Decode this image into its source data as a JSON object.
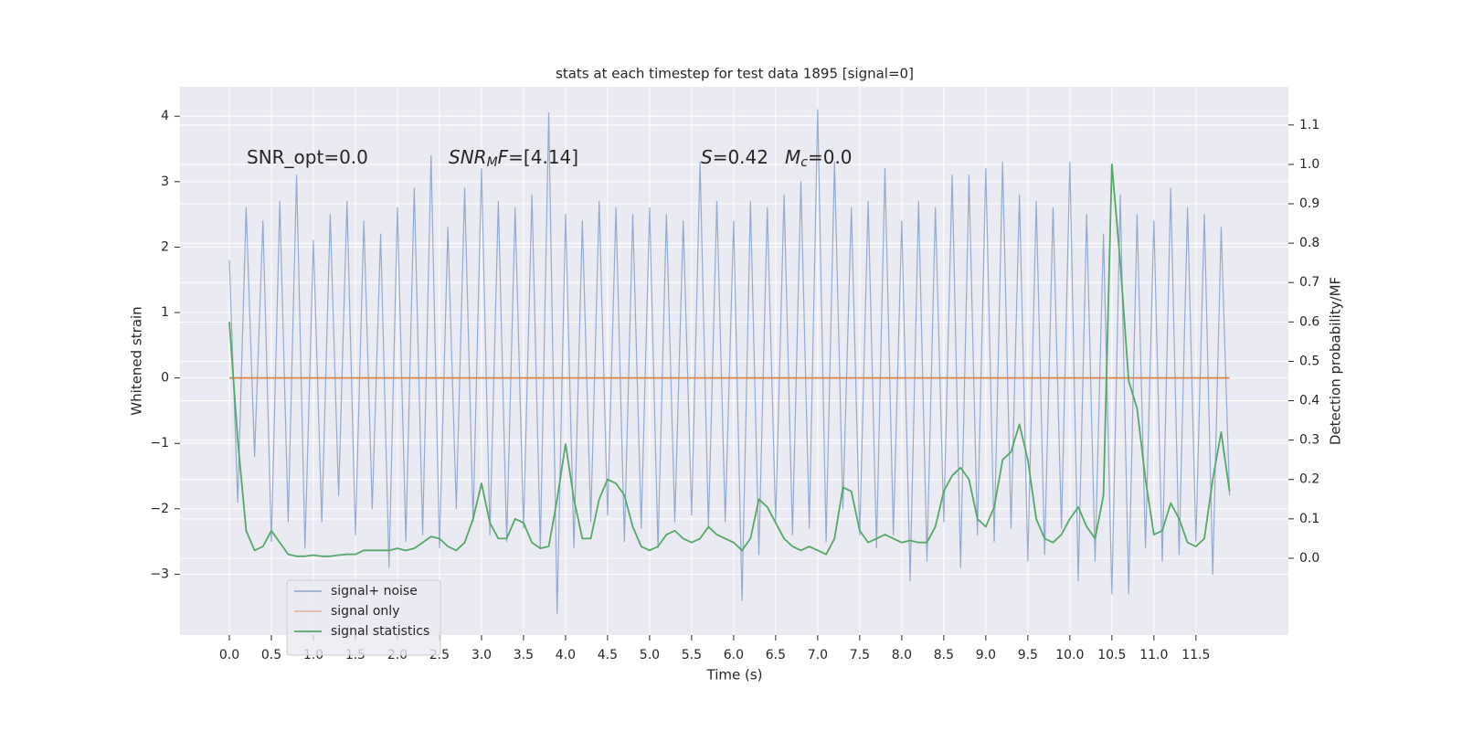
{
  "chart_data": {
    "type": "line",
    "title": "stats at each timestep for test data 1895 [signal=0]",
    "xlabel": "Time (s)",
    "ylabel": "Whitened strain",
    "y2label": "Detection probability/MF",
    "annotations": [
      {
        "parts": [
          {
            "text": "SNR_opt=0.0"
          }
        ]
      },
      {
        "parts": [
          {
            "text": "SNR",
            "italic": true
          },
          {
            "text": "M",
            "italic": true,
            "sub": true
          },
          {
            "text": "F",
            "italic": true
          },
          {
            "text": "=[4.14]"
          }
        ]
      },
      {
        "parts": [
          {
            "text": "S",
            "italic": true
          },
          {
            "text": "=0.42"
          }
        ]
      },
      {
        "parts": [
          {
            "text": "M",
            "italic": true
          },
          {
            "text": "c",
            "italic": true,
            "sub": true
          },
          {
            "text": "=0.0"
          }
        ]
      }
    ],
    "legend": "lower left",
    "grid": true,
    "xlim": [
      -0.587,
      12.6
    ],
    "ylim": [
      -3.93,
      4.45
    ],
    "y2lim": [
      -0.195,
      1.197
    ],
    "xticks": [
      {
        "value": 0,
        "label": "0.0"
      },
      0.5,
      {
        "value": 1,
        "label": "1.0"
      },
      1.5,
      {
        "value": 2,
        "label": "2.0"
      },
      2.5,
      {
        "value": 3,
        "label": "3.0"
      },
      3.5,
      {
        "value": 4,
        "label": "4.0"
      },
      4.5,
      {
        "value": 5,
        "label": "5.0"
      },
      5.5,
      {
        "value": 6,
        "label": "6.0"
      },
      6.5,
      {
        "value": 7,
        "label": "7.0"
      },
      7.5,
      {
        "value": 8,
        "label": "8.0"
      },
      8.5,
      {
        "value": 9,
        "label": "9.0"
      },
      9.5,
      {
        "value": 10,
        "label": "10.0"
      },
      10.5,
      {
        "value": 11,
        "label": "11.0"
      },
      11.5
    ],
    "yticks": [
      {
        "value": -3,
        "label": "−3"
      },
      {
        "value": -2,
        "label": "−2"
      },
      {
        "value": -1,
        "label": "−1"
      },
      0,
      1,
      2,
      3,
      4
    ],
    "y2ticks": [
      {
        "value": 0,
        "label": "0.0"
      },
      0.1,
      0.2,
      0.3,
      0.4,
      0.5,
      0.6,
      0.7,
      0.8,
      0.9,
      {
        "value": 1,
        "label": "1.0"
      },
      1.1
    ],
    "x": [
      0,
      0.1,
      0.2,
      0.3,
      0.4,
      0.5,
      0.6,
      0.7,
      0.8,
      0.9,
      1,
      1.1,
      1.2,
      1.3,
      1.4,
      1.5,
      1.6,
      1.7,
      1.8,
      1.9,
      2,
      2.1,
      2.2,
      2.3,
      2.4,
      2.5,
      2.6,
      2.7,
      2.8,
      2.9,
      3,
      3.1,
      3.2,
      3.3,
      3.4,
      3.5,
      3.6,
      3.7,
      3.8,
      3.9,
      4,
      4.1,
      4.2,
      4.3,
      4.4,
      4.5,
      4.6,
      4.7,
      4.8,
      4.9,
      5,
      5.1,
      5.2,
      5.3,
      5.4,
      5.5,
      5.6,
      5.7,
      5.8,
      5.9,
      6,
      6.1,
      6.2,
      6.3,
      6.4,
      6.5,
      6.6,
      6.7,
      6.8,
      6.9,
      7,
      7.1,
      7.2,
      7.3,
      7.4,
      7.5,
      7.6,
      7.7,
      7.8,
      7.9,
      8,
      8.1,
      8.2,
      8.3,
      8.4,
      8.5,
      8.6,
      8.7,
      8.8,
      8.9,
      9,
      9.1,
      9.2,
      9.3,
      9.4,
      9.5,
      9.6,
      9.7,
      9.8,
      9.9,
      10,
      10.1,
      10.2,
      10.3,
      10.4,
      10.5,
      10.6,
      10.7,
      10.8,
      10.9,
      11,
      11.1,
      11.2,
      11.3,
      11.4,
      11.5,
      11.6,
      11.7,
      11.8,
      11.9
    ],
    "series": [
      {
        "name": "signal+ noise",
        "color": "#4c72b0",
        "axis": "y",
        "values": [
          1.8,
          -1.9,
          2.6,
          -1.2,
          2.4,
          -2.5,
          2.7,
          -2.2,
          3.1,
          -2.6,
          2.1,
          -2.2,
          2.5,
          -1.8,
          2.7,
          -2.4,
          2.4,
          -2.0,
          2.2,
          -2.9,
          2.6,
          -2.5,
          2.9,
          -2.4,
          3.4,
          -2.6,
          2.3,
          -2.0,
          2.9,
          -2.2,
          3.2,
          -2.4,
          2.7,
          -2.5,
          2.6,
          -2.3,
          2.8,
          -2.6,
          4.05,
          -3.6,
          2.5,
          -2.6,
          2.4,
          -2.2,
          2.7,
          -2.1,
          2.6,
          -2.5,
          2.5,
          -2.3,
          2.6,
          -2.6,
          2.5,
          -2.2,
          2.4,
          -2.1,
          3.3,
          -2.3,
          2.7,
          -2.2,
          2.4,
          -3.4,
          2.7,
          -2.7,
          2.6,
          -2.2,
          2.8,
          -2.4,
          3.0,
          -2.3,
          4.1,
          -2.5,
          3.3,
          -2.0,
          2.6,
          -2.4,
          2.7,
          -2.6,
          3.2,
          -2.4,
          2.4,
          -3.1,
          2.7,
          -2.8,
          2.6,
          -2.2,
          3.1,
          -2.9,
          3.1,
          -2.4,
          3.2,
          -2.5,
          3.3,
          -2.3,
          2.8,
          -2.8,
          2.7,
          -2.7,
          2.6,
          -2.3,
          3.3,
          -3.1,
          2.5,
          -2.8,
          2.2,
          -3.3,
          2.8,
          -3.3,
          2.5,
          -2.6,
          2.4,
          -2.8,
          2.9,
          -2.7,
          2.6,
          -2.5,
          2.5,
          -3.0,
          2.3,
          -1.8
        ]
      },
      {
        "name": "signal only",
        "color": "#dd8452",
        "axis": "y",
        "values": [
          0,
          0,
          0,
          0,
          0,
          0,
          0,
          0,
          0,
          0,
          0,
          0,
          0,
          0,
          0,
          0,
          0,
          0,
          0,
          0,
          0,
          0,
          0,
          0,
          0,
          0,
          0,
          0,
          0,
          0,
          0,
          0,
          0,
          0,
          0,
          0,
          0,
          0,
          0,
          0,
          0,
          0,
          0,
          0,
          0,
          0,
          0,
          0,
          0,
          0,
          0,
          0,
          0,
          0,
          0,
          0,
          0,
          0,
          0,
          0,
          0,
          0,
          0,
          0,
          0,
          0,
          0,
          0,
          0,
          0,
          0,
          0,
          0,
          0,
          0,
          0,
          0,
          0,
          0,
          0,
          0,
          0,
          0,
          0,
          0,
          0,
          0,
          0,
          0,
          0,
          0,
          0,
          0,
          0,
          0,
          0,
          0,
          0,
          0,
          0,
          0,
          0,
          0,
          0,
          0,
          0,
          0,
          0,
          0,
          0,
          0,
          0,
          0,
          0,
          0,
          0,
          0,
          0,
          0,
          0
        ]
      },
      {
        "name": "signal statistics",
        "color": "#55a868",
        "axis": "y2",
        "values": [
          0.6,
          0.3,
          0.07,
          0.02,
          0.03,
          0.07,
          0.04,
          0.01,
          0.005,
          0.005,
          0.008,
          0.005,
          0.005,
          0.008,
          0.01,
          0.01,
          0.02,
          0.02,
          0.02,
          0.02,
          0.025,
          0.02,
          0.025,
          0.04,
          0.055,
          0.05,
          0.03,
          0.02,
          0.04,
          0.1,
          0.19,
          0.09,
          0.05,
          0.05,
          0.1,
          0.09,
          0.04,
          0.025,
          0.03,
          0.15,
          0.29,
          0.15,
          0.05,
          0.05,
          0.15,
          0.2,
          0.19,
          0.16,
          0.08,
          0.03,
          0.02,
          0.03,
          0.06,
          0.07,
          0.05,
          0.04,
          0.05,
          0.08,
          0.06,
          0.05,
          0.04,
          0.02,
          0.05,
          0.15,
          0.13,
          0.09,
          0.05,
          0.03,
          0.02,
          0.03,
          0.02,
          0.01,
          0.05,
          0.18,
          0.17,
          0.07,
          0.04,
          0.05,
          0.06,
          0.05,
          0.04,
          0.045,
          0.04,
          0.04,
          0.08,
          0.17,
          0.21,
          0.23,
          0.2,
          0.1,
          0.08,
          0.13,
          0.25,
          0.27,
          0.34,
          0.25,
          0.1,
          0.05,
          0.04,
          0.06,
          0.1,
          0.13,
          0.08,
          0.05,
          0.16,
          1.0,
          0.75,
          0.45,
          0.38,
          0.2,
          0.06,
          0.07,
          0.14,
          0.1,
          0.04,
          0.03,
          0.05,
          0.2,
          0.32,
          0.17
        ]
      }
    ]
  }
}
